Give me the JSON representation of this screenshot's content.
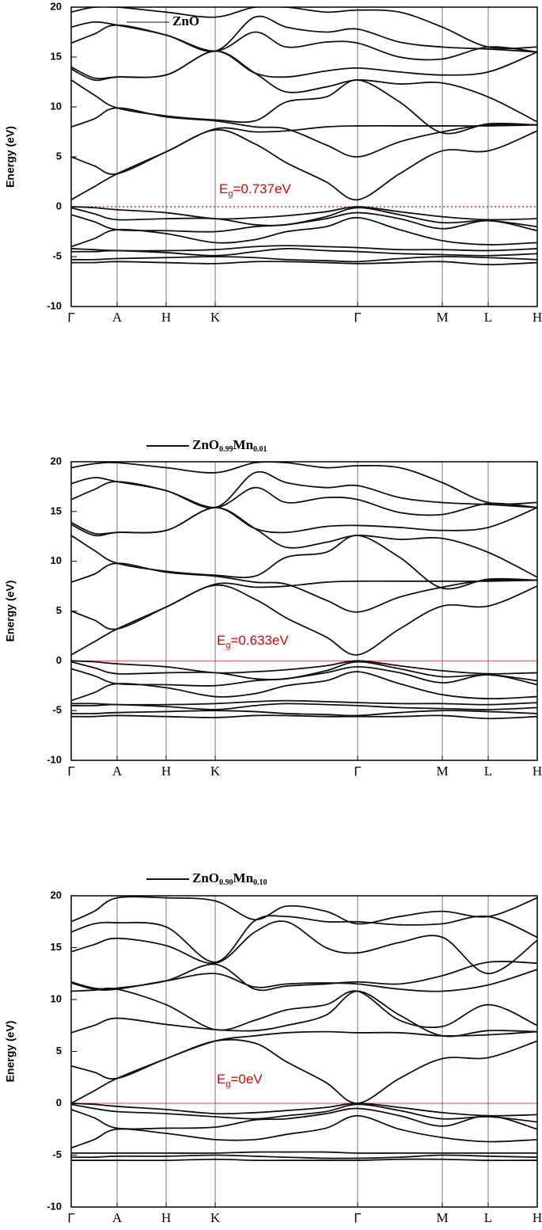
{
  "chart_data": [
    {
      "type": "line",
      "legend": [
        "ZnO"
      ],
      "annotation": [
        "E",
        "g",
        "=0.737eV"
      ],
      "ylabel": "Energy (eV)",
      "fermi_level": 0,
      "fermi_color": "#e00000",
      "fermi_style": "dotted",
      "line_color": "#111111",
      "x": [
        0,
        29,
        58,
        120,
        182,
        232,
        272,
        322,
        362,
        415,
        469,
        527,
        589
      ],
      "xlim": [
        0,
        589
      ],
      "xticks": [
        {
          "value": 0,
          "label": "Γ"
        },
        {
          "value": 58,
          "label": "A"
        },
        {
          "value": 120,
          "label": "H"
        },
        {
          "value": 182,
          "label": "K"
        },
        {
          "value": 362,
          "label": "Γ"
        },
        {
          "value": 469,
          "label": "M"
        },
        {
          "value": 527,
          "label": "L"
        },
        {
          "value": 589,
          "label": "H"
        }
      ],
      "ylim": [
        -10,
        20
      ],
      "yticks": [
        -10,
        -5,
        0,
        5,
        10,
        15,
        20
      ],
      "series": [
        {
          "values": [
            -5.6,
            -5.6,
            -5.5,
            -5.6,
            -5.7,
            -5.5,
            -5.5,
            -5.6,
            -5.7,
            -5.6,
            -5.5,
            -5.8,
            -5.6
          ]
        },
        {
          "values": [
            -5.3,
            -5.3,
            -5.2,
            -5.1,
            -5.0,
            -5.1,
            -5.3,
            -5.4,
            -5.5,
            -5.2,
            -5.0,
            -5.1,
            -5.3
          ]
        },
        {
          "values": [
            -4.5,
            -4.5,
            -4.4,
            -4.6,
            -4.9,
            -4.5,
            -4.2,
            -4.4,
            -4.5,
            -4.7,
            -4.8,
            -4.9,
            -4.7
          ]
        },
        {
          "values": [
            -4.2,
            -4.3,
            -4.4,
            -4.4,
            -4.3,
            -4.0,
            -3.9,
            -4.0,
            -4.1,
            -4.3,
            -4.3,
            -4.4,
            -4.2
          ]
        },
        {
          "values": [
            -4,
            -3.2,
            -2.3,
            -2.7,
            -3.6,
            -3.3,
            -2.5,
            -2,
            -1.1,
            -2.3,
            -3.4,
            -3.8,
            -3.6
          ]
        },
        {
          "values": [
            -0.8,
            -1.5,
            -2.3,
            -2.4,
            -2.5,
            -2.0,
            -1.8,
            -1.2,
            -0.6,
            -1.2,
            -2.2,
            -1.4,
            -2.4
          ]
        },
        {
          "values": [
            -0.1,
            -0.7,
            -1.3,
            -1.2,
            -1.2,
            -1.8,
            -1.8,
            -1,
            -0.1,
            -0.8,
            -1.6,
            -1.4,
            -2.0
          ]
        },
        {
          "values": [
            0,
            -0.1,
            -0.3,
            -0.6,
            -1.2,
            -1.1,
            -0.9,
            -0.5,
            0,
            -0.5,
            -1.0,
            -1.3,
            -1.2
          ]
        },
        {
          "values": [
            0.7,
            2,
            3.3,
            5.5,
            7.7,
            6.3,
            4.4,
            2.5,
            0.7,
            3.3,
            5.6,
            5.6,
            7.6
          ]
        },
        {
          "values": [
            5,
            4.1,
            3.3,
            5.5,
            7.8,
            7.5,
            7.6,
            8,
            8.1,
            8.1,
            8.1,
            8.1,
            8.2
          ]
        },
        {
          "values": [
            8,
            8.8,
            9.9,
            9.0,
            8.6,
            8.0,
            7.8,
            6.2,
            5,
            6.5,
            7.5,
            8.2,
            8.2
          ]
        },
        {
          "values": [
            12.7,
            11.2,
            9.9,
            9.1,
            8.7,
            8.6,
            10.5,
            11,
            12.7,
            10.5,
            7.4,
            8.3,
            8.2
          ]
        },
        {
          "values": [
            13.8,
            12.7,
            13,
            13.2,
            15.6,
            13.4,
            11.5,
            12,
            12.7,
            12.3,
            12.4,
            11.0,
            8.5
          ]
        },
        {
          "values": [
            14,
            12.9,
            13,
            13.2,
            15.6,
            13.4,
            13.0,
            13.6,
            13.9,
            13.5,
            13.2,
            13.5,
            15.5
          ]
        },
        {
          "values": [
            16.4,
            17.3,
            18.2,
            17.2,
            15.6,
            17.5,
            16.0,
            16.5,
            16.4,
            15,
            14.8,
            16,
            15.5
          ]
        },
        {
          "values": [
            18,
            18.5,
            18.2,
            17.2,
            15.6,
            19,
            18.0,
            17.5,
            17.8,
            16.5,
            16.0,
            15.8,
            15.5
          ]
        },
        {
          "values": [
            19.5,
            20,
            20,
            19.5,
            19,
            20,
            20,
            19.5,
            19.7,
            19.5,
            18,
            16,
            16
          ]
        }
      ]
    },
    {
      "type": "line",
      "legend": [
        "ZnO",
        "0.99",
        "Mn",
        "0.01"
      ],
      "annotation": [
        "E",
        "g",
        "=0.633eV"
      ],
      "ylabel": "Energy (eV)",
      "fermi_level": 0,
      "fermi_color": "#e00000",
      "fermi_style": "solid",
      "line_color": "#111111",
      "x": [
        0,
        29,
        58,
        120,
        182,
        232,
        272,
        322,
        362,
        415,
        469,
        527,
        589
      ],
      "xlim": [
        0,
        589
      ],
      "xticks": [
        {
          "value": 0,
          "label": "Γ"
        },
        {
          "value": 58,
          "label": "A"
        },
        {
          "value": 120,
          "label": "H"
        },
        {
          "value": 182,
          "label": "K"
        },
        {
          "value": 362,
          "label": "Γ"
        },
        {
          "value": 469,
          "label": "M"
        },
        {
          "value": 527,
          "label": "L"
        },
        {
          "value": 589,
          "label": "H"
        }
      ],
      "ylim": [
        -10,
        20
      ],
      "yticks": [
        -10,
        -5,
        0,
        5,
        10,
        15,
        20
      ],
      "series": [
        {
          "values": [
            -5.6,
            -5.6,
            -5.5,
            -5.6,
            -5.7,
            -5.5,
            -5.5,
            -5.6,
            -5.6,
            -5.6,
            -5.5,
            -5.8,
            -5.6
          ]
        },
        {
          "values": [
            -5.3,
            -5.3,
            -5.2,
            -5.1,
            -5.0,
            -5.1,
            -5.3,
            -5.4,
            -5.5,
            -5.2,
            -5.0,
            -5.1,
            -5.3
          ]
        },
        {
          "values": [
            -4.5,
            -4.5,
            -4.4,
            -4.6,
            -4.9,
            -4.5,
            -4.3,
            -4.4,
            -4.5,
            -4.7,
            -4.8,
            -4.9,
            -4.7
          ]
        },
        {
          "values": [
            -4.3,
            -4.3,
            -4.4,
            -4.4,
            -4.3,
            -4.1,
            -4.0,
            -4.1,
            -4.2,
            -4.3,
            -4.3,
            -4.4,
            -4.2
          ]
        },
        {
          "values": [
            -4,
            -3.2,
            -2.3,
            -2.7,
            -3.6,
            -3.3,
            -2.5,
            -2,
            -1.1,
            -2.3,
            -3.4,
            -3.8,
            -3.6
          ]
        },
        {
          "values": [
            -0.8,
            -1.5,
            -2.3,
            -2.4,
            -2.5,
            -2.0,
            -1.8,
            -1.2,
            -0.6,
            -1.2,
            -2.2,
            -1.4,
            -2.4
          ]
        },
        {
          "values": [
            -0.1,
            -0.7,
            -1.3,
            -1.2,
            -1.2,
            -1.8,
            -1.8,
            -1,
            -0.1,
            -0.8,
            -1.6,
            -1.4,
            -2.0
          ]
        },
        {
          "values": [
            0,
            -0.1,
            -0.3,
            -0.6,
            -1.2,
            -1.1,
            -0.9,
            -0.5,
            0,
            -0.5,
            -1.0,
            -1.3,
            -1.2
          ]
        },
        {
          "values": [
            0.6,
            1.9,
            3.2,
            5.4,
            7.6,
            6.2,
            4.3,
            2.4,
            0.6,
            3.2,
            5.5,
            5.5,
            7.5
          ]
        },
        {
          "values": [
            5,
            4.1,
            3.2,
            5.4,
            7.7,
            7.4,
            7.5,
            7.9,
            8,
            8,
            8,
            8,
            8.1
          ]
        },
        {
          "values": [
            7.9,
            8.7,
            9.8,
            8.9,
            8.5,
            7.9,
            7.7,
            6.1,
            4.9,
            6.4,
            7.4,
            8.1,
            8.1
          ]
        },
        {
          "values": [
            12.6,
            11.1,
            9.8,
            9.0,
            8.6,
            8.5,
            10.4,
            10.9,
            12.6,
            10.4,
            7.3,
            8.2,
            8.1
          ]
        },
        {
          "values": [
            13.7,
            12.6,
            12.9,
            13.1,
            15.4,
            13.3,
            11.4,
            11.9,
            12.6,
            12.2,
            12.3,
            10.9,
            8.4
          ]
        },
        {
          "values": [
            13.9,
            12.8,
            12.9,
            13.1,
            15.4,
            13.3,
            12.9,
            13.5,
            13.6,
            13.4,
            13.1,
            13.4,
            15.4
          ]
        },
        {
          "values": [
            16.2,
            17.2,
            18.0,
            17.1,
            15.4,
            17.4,
            15.9,
            16.4,
            16.2,
            14.9,
            14.7,
            15.8,
            15.4
          ]
        },
        {
          "values": [
            17.8,
            18.4,
            18.0,
            17.1,
            15.4,
            18.9,
            17.9,
            17.4,
            17.6,
            16.4,
            15.9,
            15.7,
            15.4
          ]
        },
        {
          "values": [
            19.4,
            19.8,
            19.9,
            19.4,
            18.9,
            19.9,
            19.9,
            19.4,
            19.6,
            19.4,
            17.9,
            15.9,
            15.9
          ]
        }
      ]
    },
    {
      "type": "line",
      "legend": [
        "ZnO",
        "0.90",
        "Mn",
        "0.10"
      ],
      "annotation": [
        "E",
        "g",
        "=0eV"
      ],
      "ylabel": "Energy (eV)",
      "fermi_level": 0,
      "fermi_color": "#e00000",
      "fermi_style": "solid",
      "line_color": "#111111",
      "x": [
        0,
        29,
        58,
        120,
        182,
        232,
        272,
        322,
        362,
        415,
        469,
        527,
        589
      ],
      "xlim": [
        0,
        589
      ],
      "xticks": [
        {
          "value": 0,
          "label": "Γ"
        },
        {
          "value": 58,
          "label": "A"
        },
        {
          "value": 120,
          "label": "H"
        },
        {
          "value": 182,
          "label": "K"
        },
        {
          "value": 362,
          "label": "Γ"
        },
        {
          "value": 469,
          "label": "M"
        },
        {
          "value": 527,
          "label": "L"
        },
        {
          "value": 589,
          "label": "H"
        }
      ],
      "ylim": [
        -10,
        20
      ],
      "yticks": [
        -10,
        -5,
        0,
        5,
        10,
        15,
        20
      ],
      "series": [
        {
          "values": [
            -5.5,
            -5.5,
            -5.5,
            -5.5,
            -5.4,
            -5.5,
            -5.5,
            -5.5,
            -5.5,
            -5.4,
            -5.4,
            -5.5,
            -5.5
          ]
        },
        {
          "values": [
            -5.2,
            -5.2,
            -5.1,
            -5.1,
            -5.0,
            -5.1,
            -5.2,
            -5.3,
            -5.3,
            -5.2,
            -5.0,
            -5.1,
            -5.2
          ]
        },
        {
          "values": [
            -4.8,
            -4.8,
            -4.8,
            -4.8,
            -4.8,
            -4.7,
            -4.7,
            -4.7,
            -4.8,
            -4.8,
            -4.8,
            -4.8,
            -4.8
          ]
        },
        {
          "values": [
            -4.3,
            -3.5,
            -2.5,
            -2.9,
            -3.5,
            -3.5,
            -3.0,
            -2.4,
            -1.2,
            -2.5,
            -3.3,
            -3.7,
            -3.5
          ]
        },
        {
          "values": [
            -0.6,
            -1.4,
            -2.4,
            -2.4,
            -2.3,
            -1.6,
            -1.5,
            -1.0,
            -0.5,
            -1.2,
            -2.2,
            -1.2,
            -2.5
          ]
        },
        {
          "values": [
            -0.1,
            -0.5,
            -0.8,
            -1.0,
            -1.3,
            -1.5,
            -1.2,
            -0.8,
            -0.1,
            -0.7,
            -1.5,
            -1.3,
            -1.8
          ]
        },
        {
          "values": [
            0,
            -0.1,
            -0.3,
            -0.6,
            -1.0,
            -0.9,
            -0.7,
            -0.4,
            0,
            -0.4,
            -0.9,
            -1.2,
            -1.1
          ]
        },
        {
          "values": [
            0,
            1.2,
            2.4,
            4.3,
            6.0,
            5.8,
            4,
            2,
            0,
            2.4,
            4.3,
            4.4,
            6
          ]
        },
        {
          "values": [
            3.6,
            3.0,
            2.4,
            4.3,
            6,
            6.5,
            6.8,
            6.9,
            6.8,
            6.8,
            6.5,
            6.6,
            6.9
          ]
        },
        {
          "values": [
            6.8,
            7.5,
            8.2,
            7.6,
            7.1,
            7,
            7.5,
            8.5,
            10.8,
            8.5,
            6.5,
            7,
            6.9
          ]
        },
        {
          "values": [
            10.8,
            10.9,
            11,
            9.5,
            7.1,
            8,
            9,
            9.5,
            10.8,
            8,
            7.4,
            9.5,
            7.5
          ]
        },
        {
          "values": [
            11.6,
            11,
            11,
            11.8,
            12.5,
            11.2,
            11.5,
            11.6,
            11.5,
            11,
            10.8,
            11.4,
            12.9
          ]
        },
        {
          "values": [
            11.7,
            11.1,
            11.1,
            11.8,
            13.4,
            11,
            11.3,
            11.5,
            11.7,
            11.5,
            12.3,
            13.6,
            13.5
          ]
        },
        {
          "values": [
            14.6,
            15.3,
            15.9,
            15.2,
            13.5,
            16.5,
            17.5,
            15,
            14.5,
            15.5,
            16,
            12.5,
            15.7
          ]
        },
        {
          "values": [
            16.5,
            17.3,
            17.4,
            17,
            13.6,
            17.6,
            18,
            17.5,
            17.5,
            17.2,
            17.3,
            18,
            16
          ]
        },
        {
          "values": [
            17.5,
            18.5,
            19.8,
            19.8,
            19.5,
            17.7,
            19,
            18.5,
            17.3,
            18,
            18.5,
            18,
            19.8
          ]
        }
      ]
    }
  ]
}
